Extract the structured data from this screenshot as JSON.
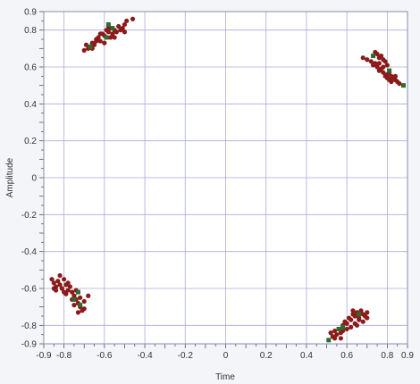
{
  "chart_data": {
    "type": "scatter",
    "title": "",
    "xlabel": "Time",
    "ylabel": "Amplitude",
    "xlim": [
      -0.9,
      0.9
    ],
    "ylim": [
      -0.9,
      0.9
    ],
    "xticks": [
      "-0.9",
      "-0.8",
      "-0.6",
      "-0.4",
      "-0.2",
      "0",
      "0.2",
      "0.4",
      "0.6",
      "0.8",
      "0.9"
    ],
    "xtick_values": [
      -0.9,
      -0.8,
      -0.6,
      -0.4,
      -0.2,
      0,
      0.2,
      0.4,
      0.6,
      0.8,
      0.9
    ],
    "yticks": [
      "0.9",
      "0.8",
      "0.6",
      "0.4",
      "0.2",
      "0",
      "-0.2",
      "-0.4",
      "-0.6",
      "-0.8",
      "-0.9"
    ],
    "ytick_values": [
      0.9,
      0.8,
      0.6,
      0.4,
      0.2,
      0,
      -0.2,
      -0.4,
      -0.6,
      -0.8,
      -0.9
    ],
    "grid": true,
    "colors": {
      "red_series": "#8b1a1a",
      "green_series": "#2f6b2f",
      "grid": "#aaaadd",
      "frame": "#8a8ab0"
    },
    "series": [
      {
        "marker": "circle",
        "color": "#8b1a1a",
        "points": [
          [
            -0.7,
            0.69
          ],
          [
            -0.68,
            0.7
          ],
          [
            -0.69,
            0.72
          ],
          [
            -0.66,
            0.73
          ],
          [
            -0.65,
            0.72
          ],
          [
            -0.64,
            0.75
          ],
          [
            -0.63,
            0.76
          ],
          [
            -0.62,
            0.74
          ],
          [
            -0.61,
            0.78
          ],
          [
            -0.6,
            0.77
          ],
          [
            -0.59,
            0.8
          ],
          [
            -0.58,
            0.79
          ],
          [
            -0.57,
            0.81
          ],
          [
            -0.56,
            0.78
          ],
          [
            -0.55,
            0.8
          ],
          [
            -0.54,
            0.79
          ],
          [
            -0.53,
            0.82
          ],
          [
            -0.52,
            0.8
          ],
          [
            -0.51,
            0.81
          ],
          [
            -0.5,
            0.83
          ],
          [
            -0.49,
            0.85
          ],
          [
            -0.5,
            0.79
          ],
          [
            -0.57,
            0.76
          ],
          [
            -0.6,
            0.73
          ],
          [
            -0.62,
            0.78
          ],
          [
            -0.58,
            0.82
          ],
          [
            -0.46,
            0.86
          ],
          [
            -0.66,
            0.7
          ],
          [
            -0.64,
            0.74
          ],
          [
            -0.55,
            0.76
          ],
          [
            0.68,
            0.65
          ],
          [
            0.7,
            0.64
          ],
          [
            0.72,
            0.63
          ],
          [
            0.73,
            0.61
          ],
          [
            0.74,
            0.62
          ],
          [
            0.75,
            0.6
          ],
          [
            0.76,
            0.58
          ],
          [
            0.77,
            0.59
          ],
          [
            0.78,
            0.57
          ],
          [
            0.79,
            0.55
          ],
          [
            0.8,
            0.54
          ],
          [
            0.81,
            0.53
          ],
          [
            0.82,
            0.52
          ],
          [
            0.83,
            0.54
          ],
          [
            0.84,
            0.53
          ],
          [
            0.85,
            0.52
          ],
          [
            0.74,
            0.68
          ],
          [
            0.75,
            0.67
          ],
          [
            0.76,
            0.65
          ],
          [
            0.77,
            0.66
          ],
          [
            0.78,
            0.64
          ],
          [
            0.79,
            0.63
          ],
          [
            0.8,
            0.61
          ],
          [
            0.81,
            0.57
          ],
          [
            0.82,
            0.55
          ],
          [
            0.76,
            0.62
          ],
          [
            0.78,
            0.6
          ],
          [
            0.8,
            0.56
          ],
          [
            0.84,
            0.55
          ],
          [
            0.86,
            0.51
          ],
          [
            -0.86,
            -0.55
          ],
          [
            -0.85,
            -0.57
          ],
          [
            -0.84,
            -0.59
          ],
          [
            -0.83,
            -0.56
          ],
          [
            -0.82,
            -0.58
          ],
          [
            -0.81,
            -0.6
          ],
          [
            -0.8,
            -0.55
          ],
          [
            -0.79,
            -0.58
          ],
          [
            -0.78,
            -0.61
          ],
          [
            -0.77,
            -0.59
          ],
          [
            -0.76,
            -0.62
          ],
          [
            -0.75,
            -0.64
          ],
          [
            -0.74,
            -0.66
          ],
          [
            -0.73,
            -0.68
          ],
          [
            -0.72,
            -0.7
          ],
          [
            -0.71,
            -0.72
          ],
          [
            -0.84,
            -0.61
          ],
          [
            -0.82,
            -0.53
          ],
          [
            -0.8,
            -0.62
          ],
          [
            -0.78,
            -0.57
          ],
          [
            -0.76,
            -0.66
          ],
          [
            -0.74,
            -0.61
          ],
          [
            -0.72,
            -0.65
          ],
          [
            -0.7,
            -0.67
          ],
          [
            -0.68,
            -0.64
          ],
          [
            -0.7,
            -0.71
          ],
          [
            -0.73,
            -0.73
          ],
          [
            -0.79,
            -0.63
          ],
          [
            -0.85,
            -0.6
          ],
          [
            -0.75,
            -0.69
          ],
          [
            0.52,
            -0.84
          ],
          [
            0.53,
            -0.86
          ],
          [
            0.54,
            -0.83
          ],
          [
            0.55,
            -0.85
          ],
          [
            0.56,
            -0.82
          ],
          [
            0.57,
            -0.84
          ],
          [
            0.58,
            -0.8
          ],
          [
            0.59,
            -0.78
          ],
          [
            0.6,
            -0.79
          ],
          [
            0.61,
            -0.76
          ],
          [
            0.62,
            -0.77
          ],
          [
            0.63,
            -0.74
          ],
          [
            0.64,
            -0.75
          ],
          [
            0.65,
            -0.73
          ],
          [
            0.66,
            -0.76
          ],
          [
            0.67,
            -0.72
          ],
          [
            0.68,
            -0.74
          ],
          [
            0.69,
            -0.75
          ],
          [
            0.7,
            -0.73
          ],
          [
            0.62,
            -0.81
          ],
          [
            0.64,
            -0.79
          ],
          [
            0.66,
            -0.77
          ],
          [
            0.68,
            -0.78
          ],
          [
            0.58,
            -0.83
          ],
          [
            0.54,
            -0.87
          ],
          [
            0.6,
            -0.82
          ],
          [
            0.65,
            -0.8
          ],
          [
            0.7,
            -0.76
          ],
          [
            0.63,
            -0.72
          ],
          [
            0.57,
            -0.87
          ]
        ]
      },
      {
        "marker": "square",
        "color": "#2f6b2f",
        "points": [
          [
            -0.67,
            0.71
          ],
          [
            -0.59,
            0.76
          ],
          [
            -0.58,
            0.83
          ],
          [
            -0.56,
            0.81
          ],
          [
            0.73,
            0.66
          ],
          [
            0.81,
            0.58
          ],
          [
            0.88,
            0.5
          ],
          [
            -0.73,
            -0.62
          ],
          [
            -0.75,
            -0.66
          ],
          [
            -0.72,
            -0.69
          ],
          [
            0.51,
            -0.88
          ],
          [
            0.56,
            -0.82
          ],
          [
            0.58,
            -0.81
          ],
          [
            0.66,
            -0.74
          ]
        ]
      }
    ]
  }
}
